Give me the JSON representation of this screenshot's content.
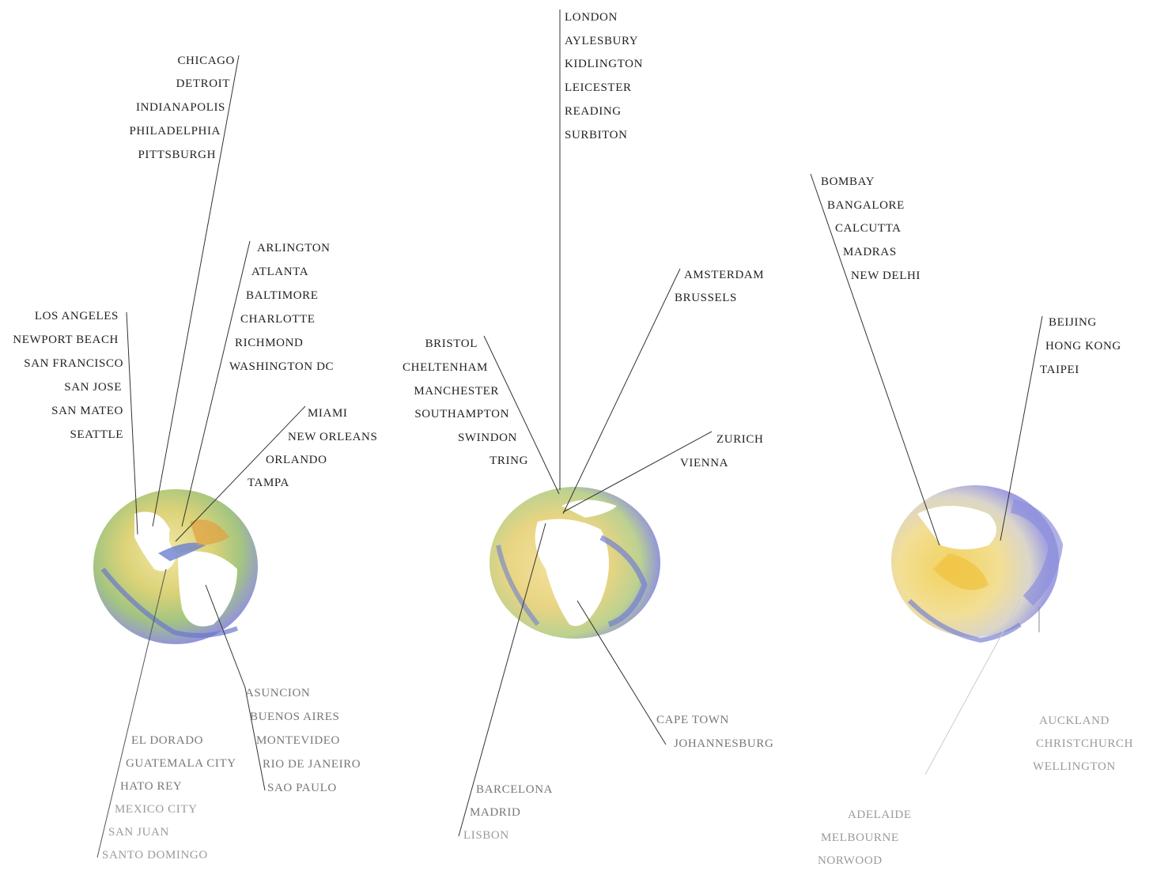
{
  "globes": [
    {
      "name": "americas",
      "groups": [
        {
          "id": "midwest",
          "cities": [
            "CHICAGO",
            "DETROIT",
            "INDIANAPOLIS",
            "PHILADELPHIA",
            "PITTSBURGH"
          ]
        },
        {
          "id": "east",
          "cities": [
            "ARLINGTON",
            "ATLANTA",
            "BALTIMORE",
            "CHARLOTTE",
            "RICHMOND",
            "WASHINGTON DC"
          ]
        },
        {
          "id": "west",
          "cities": [
            "LOS ANGELES",
            "NEWPORT BEACH",
            "SAN FRANCISCO",
            "SAN JOSE",
            "SAN MATEO",
            "SEATTLE"
          ]
        },
        {
          "id": "south",
          "cities": [
            "MIAMI",
            "NEW ORLEANS",
            "ORLANDO",
            "TAMPA"
          ]
        },
        {
          "id": "south-america",
          "cities": [
            "ASUNCION",
            "BUENOS AIRES",
            "MONTEVIDEO",
            "RIO DE JANEIRO",
            "SAO PAULO"
          ]
        },
        {
          "id": "central-america",
          "cities": [
            "EL DORADO",
            "GUATEMALA CITY",
            "HATO REY",
            "MEXICO CITY",
            "SAN JUAN",
            "SANTO DOMINGO"
          ]
        }
      ]
    },
    {
      "name": "europe-africa",
      "groups": [
        {
          "id": "uk-north",
          "cities": [
            "LONDON",
            "AYLESBURY",
            "KIDLINGTON",
            "LEICESTER",
            "READING",
            "SURBITON"
          ]
        },
        {
          "id": "benelux",
          "cities": [
            "AMSTERDAM",
            "BRUSSELS"
          ]
        },
        {
          "id": "uk-west",
          "cities": [
            "BRISTOL",
            "CHELTENHAM",
            "MANCHESTER",
            "SOUTHAMPTON",
            "SWINDON",
            "TRING"
          ]
        },
        {
          "id": "central-europe",
          "cities": [
            "ZURICH",
            "VIENNA"
          ]
        },
        {
          "id": "south-africa",
          "cities": [
            "CAPE TOWN",
            "JOHANNESBURG"
          ]
        },
        {
          "id": "iberia",
          "cities": [
            "BARCELONA",
            "MADRID",
            "LISBON"
          ]
        }
      ]
    },
    {
      "name": "asia-pacific",
      "groups": [
        {
          "id": "india",
          "cities": [
            "BOMBAY",
            "BANGALORE",
            "CALCUTTA",
            "MADRAS",
            "NEW DELHI"
          ]
        },
        {
          "id": "east-asia",
          "cities": [
            "BEIJING",
            "HONG KONG",
            "TAIPEI"
          ]
        },
        {
          "id": "new-zealand",
          "cities": [
            "AUCKLAND",
            "CHRISTCHURCH",
            "WELLINGTON"
          ]
        },
        {
          "id": "australia",
          "cities": [
            "ADELAIDE",
            "MELBOURNE",
            "NORWOOD"
          ]
        }
      ]
    }
  ]
}
